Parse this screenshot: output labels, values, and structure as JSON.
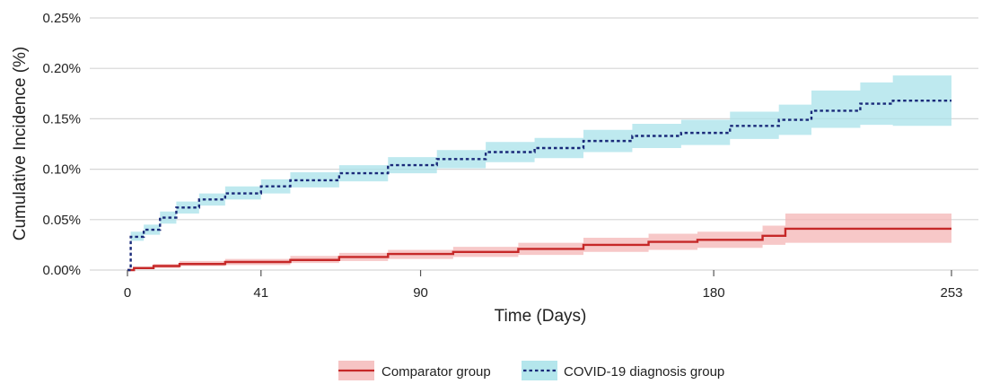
{
  "chart_data": {
    "type": "line",
    "title": "",
    "xlabel": "Time (Days)",
    "ylabel": "Cumulative Incidence (%)",
    "xlim": [
      0,
      253
    ],
    "ylim": [
      0,
      0.25
    ],
    "x_ticks": [
      0,
      41,
      90,
      180,
      253
    ],
    "y_ticks": [
      {
        "value": 0.0,
        "label": "0.00%"
      },
      {
        "value": 0.05,
        "label": "0.05%"
      },
      {
        "value": 0.1,
        "label": "0.10%"
      },
      {
        "value": 0.15,
        "label": "0.15%"
      },
      {
        "value": 0.2,
        "label": "0.20%"
      },
      {
        "value": 0.25,
        "label": "0.25%"
      }
    ],
    "grid": "horizontal",
    "legend_position": "bottom",
    "series": [
      {
        "name": "Comparator group",
        "line_style": "solid",
        "color": "#c62828",
        "band_color": "#f4b6b6",
        "points": [
          {
            "x": 0,
            "y": 0.0,
            "lo": 0.0,
            "hi": 0.0
          },
          {
            "x": 2,
            "y": 0.002,
            "lo": 0.001,
            "hi": 0.003
          },
          {
            "x": 8,
            "y": 0.004,
            "lo": 0.002,
            "hi": 0.006
          },
          {
            "x": 16,
            "y": 0.006,
            "lo": 0.004,
            "hi": 0.009
          },
          {
            "x": 30,
            "y": 0.008,
            "lo": 0.005,
            "hi": 0.011
          },
          {
            "x": 50,
            "y": 0.01,
            "lo": 0.007,
            "hi": 0.014
          },
          {
            "x": 65,
            "y": 0.013,
            "lo": 0.009,
            "hi": 0.017
          },
          {
            "x": 80,
            "y": 0.016,
            "lo": 0.011,
            "hi": 0.02
          },
          {
            "x": 100,
            "y": 0.018,
            "lo": 0.013,
            "hi": 0.023
          },
          {
            "x": 120,
            "y": 0.021,
            "lo": 0.015,
            "hi": 0.027
          },
          {
            "x": 140,
            "y": 0.025,
            "lo": 0.018,
            "hi": 0.032
          },
          {
            "x": 160,
            "y": 0.028,
            "lo": 0.02,
            "hi": 0.036
          },
          {
            "x": 175,
            "y": 0.03,
            "lo": 0.022,
            "hi": 0.038
          },
          {
            "x": 195,
            "y": 0.034,
            "lo": 0.025,
            "hi": 0.044
          },
          {
            "x": 202,
            "y": 0.041,
            "lo": 0.027,
            "hi": 0.056
          },
          {
            "x": 253,
            "y": 0.041,
            "lo": 0.026,
            "hi": 0.056
          }
        ]
      },
      {
        "name": "COVID-19 diagnosis group",
        "line_style": "dotted",
        "color": "#1a2a7a",
        "band_color": "#a8e2ea",
        "points": [
          {
            "x": 0,
            "y": 0.0,
            "lo": 0.0,
            "hi": 0.0
          },
          {
            "x": 1,
            "y": 0.033,
            "lo": 0.029,
            "hi": 0.038
          },
          {
            "x": 5,
            "y": 0.04,
            "lo": 0.035,
            "hi": 0.045
          },
          {
            "x": 10,
            "y": 0.052,
            "lo": 0.046,
            "hi": 0.058
          },
          {
            "x": 15,
            "y": 0.062,
            "lo": 0.056,
            "hi": 0.068
          },
          {
            "x": 22,
            "y": 0.07,
            "lo": 0.064,
            "hi": 0.076
          },
          {
            "x": 30,
            "y": 0.076,
            "lo": 0.07,
            "hi": 0.083
          },
          {
            "x": 41,
            "y": 0.083,
            "lo": 0.076,
            "hi": 0.09
          },
          {
            "x": 50,
            "y": 0.089,
            "lo": 0.082,
            "hi": 0.097
          },
          {
            "x": 65,
            "y": 0.096,
            "lo": 0.088,
            "hi": 0.104
          },
          {
            "x": 80,
            "y": 0.104,
            "lo": 0.096,
            "hi": 0.112
          },
          {
            "x": 95,
            "y": 0.11,
            "lo": 0.101,
            "hi": 0.119
          },
          {
            "x": 110,
            "y": 0.117,
            "lo": 0.107,
            "hi": 0.127
          },
          {
            "x": 125,
            "y": 0.121,
            "lo": 0.111,
            "hi": 0.131
          },
          {
            "x": 140,
            "y": 0.128,
            "lo": 0.117,
            "hi": 0.139
          },
          {
            "x": 155,
            "y": 0.133,
            "lo": 0.121,
            "hi": 0.145
          },
          {
            "x": 170,
            "y": 0.136,
            "lo": 0.124,
            "hi": 0.149
          },
          {
            "x": 185,
            "y": 0.143,
            "lo": 0.13,
            "hi": 0.157
          },
          {
            "x": 200,
            "y": 0.149,
            "lo": 0.134,
            "hi": 0.164
          },
          {
            "x": 210,
            "y": 0.158,
            "lo": 0.141,
            "hi": 0.178
          },
          {
            "x": 225,
            "y": 0.165,
            "lo": 0.144,
            "hi": 0.186
          },
          {
            "x": 235,
            "y": 0.168,
            "lo": 0.143,
            "hi": 0.193
          },
          {
            "x": 253,
            "y": 0.168,
            "lo": 0.142,
            "hi": 0.193
          }
        ]
      }
    ]
  }
}
